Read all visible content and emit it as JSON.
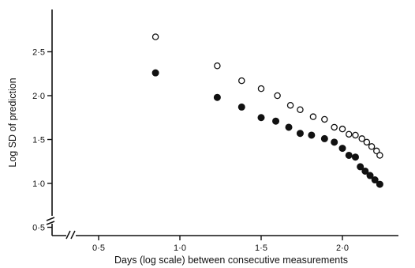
{
  "chart_data": {
    "type": "scatter",
    "xlabel": "Days (log scale) between consecutive measurements",
    "ylabel": "Log SD of prediction",
    "xlim": [
      0.3,
      2.4
    ],
    "ylim": [
      0.5,
      2.9
    ],
    "x_ticks": [
      {
        "value": 0.5,
        "label": "0·5"
      },
      {
        "value": 1.0,
        "label": "1·0"
      },
      {
        "value": 1.5,
        "label": "1·5"
      },
      {
        "value": 2.0,
        "label": "2·0"
      }
    ],
    "y_ticks": [
      {
        "value": 0.5,
        "label": "0·5"
      },
      {
        "value": 1.0,
        "label": "1·0"
      },
      {
        "value": 1.5,
        "label": "1·5"
      },
      {
        "value": 2.0,
        "label": "2·0"
      },
      {
        "value": 2.5,
        "label": "2·5"
      }
    ],
    "axis_breaks": true,
    "grid": false,
    "series": [
      {
        "marker": "open-circle",
        "color": "#111111",
        "points": [
          {
            "x": 0.85,
            "y": 2.67
          },
          {
            "x": 1.23,
            "y": 2.34
          },
          {
            "x": 1.38,
            "y": 2.17
          },
          {
            "x": 1.5,
            "y": 2.08
          },
          {
            "x": 1.6,
            "y": 2.0
          },
          {
            "x": 1.68,
            "y": 1.89
          },
          {
            "x": 1.74,
            "y": 1.84
          },
          {
            "x": 1.82,
            "y": 1.76
          },
          {
            "x": 1.89,
            "y": 1.73
          },
          {
            "x": 1.95,
            "y": 1.64
          },
          {
            "x": 2.0,
            "y": 1.62
          },
          {
            "x": 2.04,
            "y": 1.56
          },
          {
            "x": 2.08,
            "y": 1.55
          },
          {
            "x": 2.12,
            "y": 1.51
          },
          {
            "x": 2.15,
            "y": 1.47
          },
          {
            "x": 2.18,
            "y": 1.42
          },
          {
            "x": 2.21,
            "y": 1.37
          },
          {
            "x": 2.23,
            "y": 1.32
          }
        ]
      },
      {
        "marker": "filled-circle",
        "color": "#111111",
        "points": [
          {
            "x": 0.85,
            "y": 2.26
          },
          {
            "x": 1.23,
            "y": 1.98
          },
          {
            "x": 1.38,
            "y": 1.87
          },
          {
            "x": 1.5,
            "y": 1.75
          },
          {
            "x": 1.59,
            "y": 1.71
          },
          {
            "x": 1.67,
            "y": 1.64
          },
          {
            "x": 1.74,
            "y": 1.57
          },
          {
            "x": 1.81,
            "y": 1.55
          },
          {
            "x": 1.89,
            "y": 1.51
          },
          {
            "x": 1.95,
            "y": 1.47
          },
          {
            "x": 2.0,
            "y": 1.4
          },
          {
            "x": 2.04,
            "y": 1.32
          },
          {
            "x": 2.08,
            "y": 1.3
          },
          {
            "x": 2.11,
            "y": 1.19
          },
          {
            "x": 2.14,
            "y": 1.14
          },
          {
            "x": 2.17,
            "y": 1.09
          },
          {
            "x": 2.2,
            "y": 1.04
          },
          {
            "x": 2.23,
            "y": 0.99
          }
        ]
      }
    ]
  }
}
